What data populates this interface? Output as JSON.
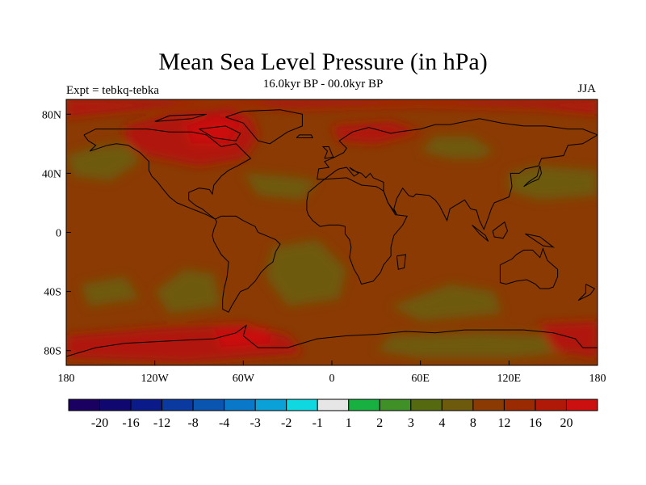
{
  "title": "Mean Sea Level Pressure (in hPa)",
  "subtitle": "16.0kyr BP - 00.0kyr BP",
  "experiment_label": "Expt = tebkq-tebka",
  "season_label": "JJA",
  "colors": {
    "background_field": "#8a3a02",
    "olive_region": "#6e5a0c",
    "red_region": "#b01808",
    "bright_red": "#cc1010",
    "coast": "#000000"
  },
  "map": {
    "lon_range": [
      -180,
      180
    ],
    "lat_range": [
      -90,
      90
    ],
    "x_ticks": [
      "180",
      "120W",
      "60W",
      "0",
      "60E",
      "120E",
      "180"
    ],
    "y_ticks": [
      "80N",
      "40N",
      "0",
      "40S",
      "80S"
    ]
  },
  "colorbar": {
    "colors": [
      "#1a0060",
      "#100870",
      "#0a1a88",
      "#0a3aa0",
      "#0a55b0",
      "#0a78c8",
      "#0aa0d8",
      "#10d8e0",
      "#e6e6e6",
      "#18b040",
      "#409028",
      "#556a10",
      "#6e5a0c",
      "#8a3a02",
      "#9a2a02",
      "#b01808",
      "#cc1010"
    ],
    "labels": [
      "-20",
      "-16",
      "-12",
      "-8",
      "-4",
      "-3",
      "-2",
      "-1",
      "1",
      "2",
      "3",
      "4",
      "8",
      "12",
      "16",
      "20"
    ]
  }
}
